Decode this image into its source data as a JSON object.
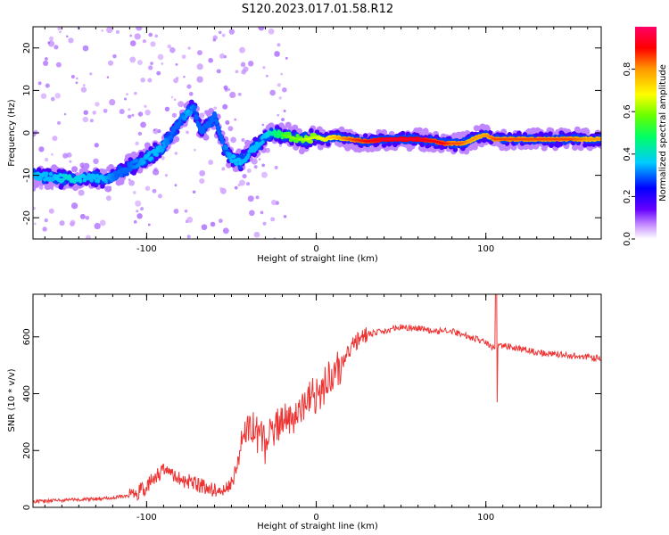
{
  "title": "S120.2023.017.01.58.R12",
  "chart_data": [
    {
      "type": "heatmap",
      "title": "S120.2023.017.01.58.R12",
      "xlabel": "Height of straight line (km)",
      "ylabel": "Frequency (Hz)",
      "xlim": [
        -167,
        168
      ],
      "ylim": [
        -25,
        25
      ],
      "x_ticks": [
        "-100",
        "0",
        "100"
      ],
      "y_ticks": [
        "20",
        "10",
        "0",
        "-10",
        "-20"
      ],
      "colorbar": {
        "label": "Normalized spectral amplitude",
        "range": [
          0,
          1
        ],
        "ticks": [
          "0.0",
          "0.2",
          "0.4",
          "0.6",
          "0.8"
        ],
        "colors": [
          "#ffffff",
          "#cc99ff",
          "#6600ff",
          "#0000ff",
          "#00ccff",
          "#00ff66",
          "#66ff00",
          "#ffff00",
          "#ff9900",
          "#ff0000",
          "#ff0066"
        ]
      },
      "ridge": {
        "name": "peak frequency",
        "x": [
          -167,
          -155,
          -145,
          -135,
          -125,
          -118,
          -110,
          -100,
          -92,
          -86,
          -80,
          -75,
          -72,
          -68,
          -64,
          -60,
          -55,
          -50,
          -45,
          -40,
          -35,
          -30,
          -25,
          -20,
          -15,
          -10,
          -5,
          0,
          5,
          10,
          20,
          30,
          40,
          50,
          60,
          70,
          75,
          80,
          85,
          90,
          95,
          100,
          105,
          110,
          120,
          130,
          140,
          150,
          160,
          168
        ],
        "y": [
          -10,
          -10.5,
          -11,
          -10.5,
          -11,
          -10,
          -8,
          -6,
          -4,
          -1,
          3,
          5,
          6,
          0,
          2,
          4,
          -3,
          -6,
          -7,
          -5,
          -3,
          -1,
          0,
          -0.5,
          -1,
          -1.5,
          -1.5,
          -1,
          -1.5,
          -1,
          -1.5,
          -2,
          -1.5,
          -1.5,
          -1.5,
          -2,
          -2.5,
          -2.5,
          -2.5,
          -2,
          -1,
          -0.5,
          -1.5,
          -1.5,
          -1.5,
          -1.5,
          -1.5,
          -1.5,
          -1.5,
          -1.5
        ],
        "amplitude": [
          0.35,
          0.35,
          0.4,
          0.35,
          0.35,
          0.3,
          0.3,
          0.35,
          0.35,
          0.3,
          0.3,
          0.35,
          0.3,
          0.3,
          0.3,
          0.3,
          0.3,
          0.35,
          0.35,
          0.35,
          0.35,
          0.35,
          0.45,
          0.5,
          0.55,
          0.55,
          0.6,
          0.6,
          0.65,
          0.7,
          0.8,
          0.85,
          0.9,
          0.9,
          0.9,
          0.85,
          0.85,
          0.8,
          0.8,
          0.75,
          0.75,
          0.75,
          0.8,
          0.8,
          0.8,
          0.8,
          0.8,
          0.8,
          0.75,
          0.75
        ]
      }
    },
    {
      "type": "line",
      "xlabel": "Height of straight line (km)",
      "ylabel": "SNR (10 * v/v)",
      "xlim": [
        -167,
        168
      ],
      "ylim": [
        0,
        750
      ],
      "x_ticks": [
        "-100",
        "0",
        "100"
      ],
      "y_ticks": [
        "0",
        "200",
        "400",
        "600"
      ],
      "series": [
        {
          "color": "#ee3333",
          "x": [
            -167,
            -150,
            -130,
            -110,
            -100,
            -95,
            -90,
            -85,
            -80,
            -75,
            -70,
            -60,
            -55,
            -50,
            -45,
            -40,
            -35,
            -30,
            -25,
            -20,
            -15,
            -10,
            -5,
            0,
            5,
            10,
            15,
            20,
            25,
            30,
            40,
            50,
            60,
            70,
            80,
            90,
            100,
            105,
            110,
            120,
            130,
            140,
            150,
            160,
            168
          ],
          "y": [
            20,
            25,
            30,
            40,
            70,
            110,
            130,
            110,
            100,
            90,
            80,
            60,
            60,
            80,
            180,
            300,
            260,
            220,
            270,
            310,
            300,
            350,
            380,
            400,
            430,
            460,
            500,
            560,
            590,
            610,
            620,
            635,
            630,
            620,
            620,
            600,
            580,
            560,
            570,
            560,
            545,
            540,
            535,
            530,
            525
          ]
        }
      ],
      "spikes": [
        {
          "x": 106,
          "y_min": 370,
          "y_max": 750
        }
      ]
    }
  ]
}
